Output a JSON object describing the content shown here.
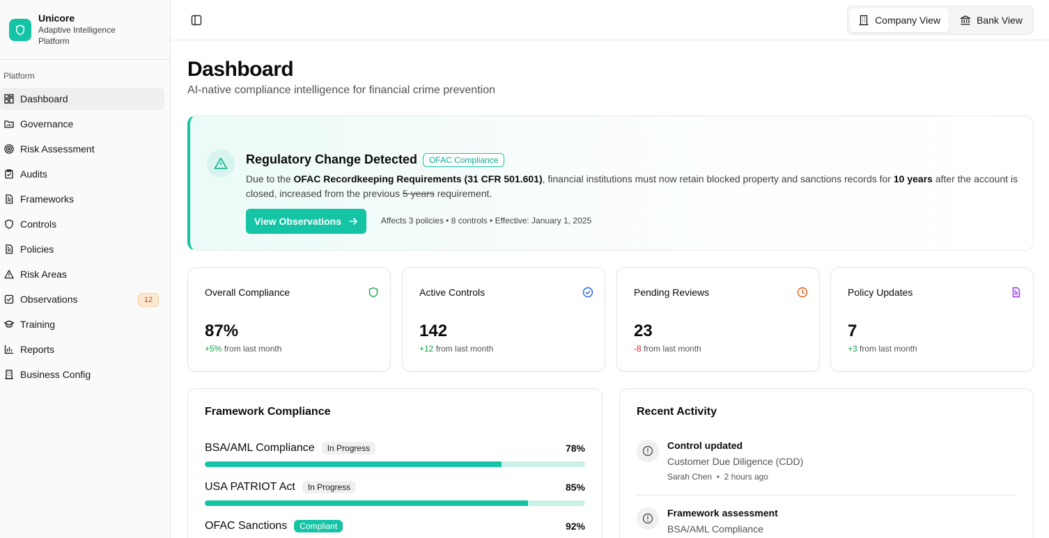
{
  "brand": {
    "name": "Unicore",
    "subtitle": "Adaptive Intelligence Platform",
    "color": "#14c4a5"
  },
  "sidebar": {
    "group_label": "Platform",
    "items": [
      {
        "label": "Dashboard",
        "icon": "dashboard-icon"
      },
      {
        "label": "Governance",
        "icon": "folder-chart-icon"
      },
      {
        "label": "Risk Assessment",
        "icon": "target-icon"
      },
      {
        "label": "Audits",
        "icon": "clipboard-icon"
      },
      {
        "label": "Frameworks",
        "icon": "document-icon"
      },
      {
        "label": "Controls",
        "icon": "shield-icon"
      },
      {
        "label": "Policies",
        "icon": "document-icon"
      },
      {
        "label": "Risk Areas",
        "icon": "warning-icon"
      },
      {
        "label": "Observations",
        "icon": "checkbox-icon",
        "badge": "12"
      },
      {
        "label": "Training",
        "icon": "graduation-cap-icon"
      },
      {
        "label": "Reports",
        "icon": "bar-chart-icon"
      },
      {
        "label": "Business Config",
        "icon": "building-icon"
      }
    ]
  },
  "header": {
    "views": [
      {
        "label": "Company View",
        "icon": "building-icon",
        "active": true
      },
      {
        "label": "Bank View",
        "icon": "bank-icon",
        "active": false
      }
    ]
  },
  "page": {
    "title": "Dashboard",
    "subtitle": "AI-native compliance intelligence for financial crime prevention"
  },
  "alert": {
    "title": "Regulatory Change Detected",
    "badge": "OFAC Compliance",
    "body_prefix": "Due to the ",
    "body_regulation": "OFAC Recordkeeping Requirements (31 CFR 501.601)",
    "body_middle": ", financial institutions must now retain blocked property and sanctions records for ",
    "body_new_period": "10 years",
    "body_after": " after the account is closed, increased from the previous ",
    "body_old_period": "5 years",
    "body_suffix": " requirement.",
    "cta": "View Observations",
    "meta": "Affects 3 policies • 8 controls • Effective: January 1, 2025"
  },
  "stats": [
    {
      "label": "Overall Compliance",
      "value": "87%",
      "delta": "+5%",
      "delta_suffix": " from last month",
      "icon": "shield-icon",
      "icon_color": "#16a34a",
      "trend": "pos"
    },
    {
      "label": "Active Controls",
      "value": "142",
      "delta": "+12",
      "delta_suffix": " from last month",
      "icon": "check-circle-icon",
      "icon_color": "#2563eb",
      "trend": "pos"
    },
    {
      "label": "Pending Reviews",
      "value": "23",
      "delta": "-8",
      "delta_suffix": " from last month",
      "icon": "clock-icon",
      "icon_color": "#ea580c",
      "trend": "neg"
    },
    {
      "label": "Policy Updates",
      "value": "7",
      "delta": "+3",
      "delta_suffix": " from last month",
      "icon": "document-icon",
      "icon_color": "#9333ea",
      "trend": "pos"
    }
  ],
  "framework": {
    "title": "Framework Compliance",
    "items": [
      {
        "name": "BSA/AML Compliance",
        "status": "In Progress",
        "percent_label": "78%",
        "percent": 78
      },
      {
        "name": "USA PATRIOT Act",
        "status": "In Progress",
        "percent_label": "85%",
        "percent": 85
      },
      {
        "name": "OFAC Sanctions",
        "status": "Compliant",
        "percent_label": "92%",
        "percent": 92
      }
    ]
  },
  "activity": {
    "title": "Recent Activity",
    "items": [
      {
        "title": "Control updated",
        "desc": "Customer Due Diligence (CDD)",
        "user": "Sarah Chen",
        "time": "2 hours ago"
      },
      {
        "title": "Framework assessment",
        "desc": "BSA/AML Compliance",
        "user": "",
        "time": ""
      }
    ]
  }
}
